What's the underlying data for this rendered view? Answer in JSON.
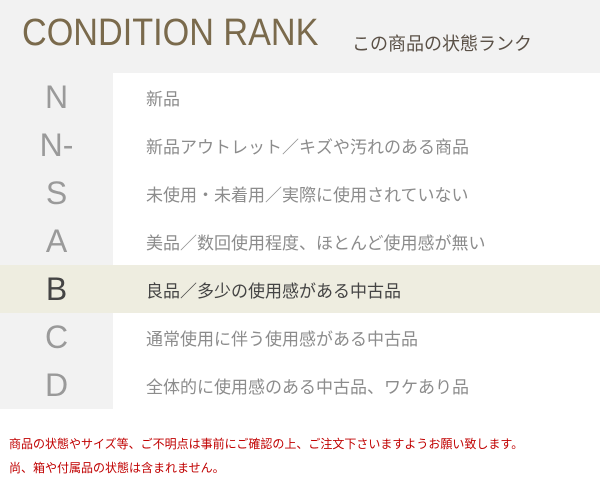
{
  "header": {
    "title": "CONDITION RANK",
    "subtitle": "この商品の状態ランク"
  },
  "ranks": [
    {
      "rank": "N",
      "description": "新品",
      "active": false
    },
    {
      "rank": "N-",
      "description": "新品アウトレット／キズや汚れのある商品",
      "active": false
    },
    {
      "rank": "S",
      "description": "未使用・未着用／実際に使用されていない",
      "active": false
    },
    {
      "rank": "A",
      "description": "美品／数回使用程度、ほとんど使用感が無い",
      "active": false
    },
    {
      "rank": "B",
      "description": "良品／多少の使用感がある中古品",
      "active": true
    },
    {
      "rank": "C",
      "description": "通常使用に伴う使用感がある中古品",
      "active": false
    },
    {
      "rank": "D",
      "description": "全体的に使用感のある中古品、ワケあり品",
      "active": false
    }
  ],
  "notes": [
    "商品の状態やサイズ等、ご不明点は事前にご確認の上、ご注文下さいますようお願い致します。",
    "尚、箱や付属品の状態は含まれません。"
  ],
  "colors": {
    "title": "#7a6a4c",
    "highlight": "#eeede0",
    "note": "#c00000"
  }
}
